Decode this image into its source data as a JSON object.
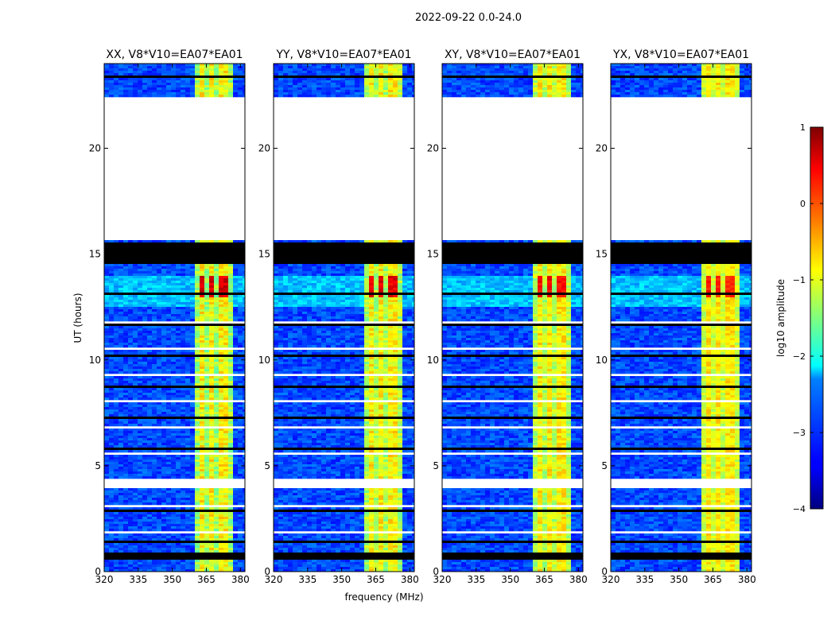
{
  "figure_title": "2022-09-22 0.0-24.0",
  "chart_data": {
    "type": "heatmap",
    "suptitle": "2022-09-22 0.0-24.0",
    "xlabel": "frequency (MHz)",
    "ylabel": "UT (hours)",
    "xlim": [
      320,
      382
    ],
    "ylim": [
      0,
      24
    ],
    "xticks": [
      320,
      335,
      350,
      365,
      380
    ],
    "yticks": [
      0,
      5,
      10,
      15,
      20
    ],
    "panels": [
      {
        "title": "XX, V8*V10=EA07*EA01",
        "strength": 1.0
      },
      {
        "title": "YY, V8*V10=EA07*EA01",
        "strength": 0.92
      },
      {
        "title": "XY, V8*V10=EA07*EA01",
        "strength": 0.86
      },
      {
        "title": "YX, V8*V10=EA07*EA01",
        "strength": 0.72
      }
    ],
    "rfi_band_mhz": [
      359.5,
      377.5
    ],
    "rfi_channels_mhz": [
      363,
      367.5,
      372.5,
      377
    ],
    "data_gaps_hours": [
      [
        14.6,
        15.55
      ],
      [
        15.7,
        22.4
      ],
      [
        3.95,
        4.35
      ],
      [
        0.55,
        0.85
      ],
      [
        1.3,
        1.5
      ]
    ],
    "blank_gaps_hours": [
      [
        15.7,
        22.4
      ],
      [
        3.95,
        4.35
      ]
    ],
    "colorbar": {
      "label": "log10 amplitude",
      "min": -4,
      "max": 1,
      "ticks": [
        1,
        0,
        -1,
        -2,
        -3,
        -4
      ],
      "tick_labels": [
        "1",
        "0",
        "−1",
        "−2",
        "−3",
        "−4"
      ],
      "colormap": "jet"
    }
  }
}
